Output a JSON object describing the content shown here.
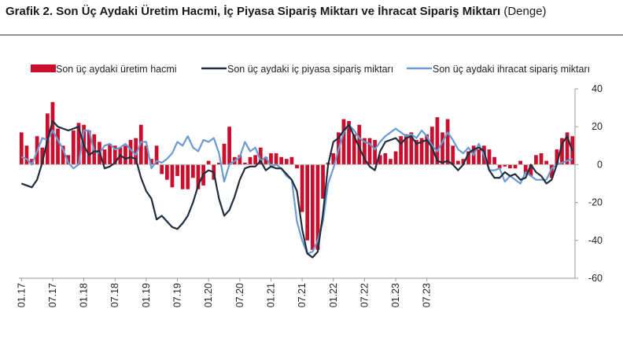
{
  "header": {
    "title": "Grafik 2. Son Üç Aydaki Üretim Hacmi, İç Piyasa Sipariş Miktarı ve İhracat Sipariş Miktarı",
    "title_suffix": "(Denge)"
  },
  "colors": {
    "bar": "#c8102e",
    "domestic": "#1f2d3d",
    "export": "#6a9bd1"
  },
  "chart_data": {
    "type": "bar",
    "series": [
      {
        "name": "Son üç aydaki üretim hacmi",
        "type": "bar",
        "values": [
          17,
          10,
          3,
          15,
          9,
          27,
          33,
          19,
          10,
          5,
          18,
          22,
          21,
          18,
          16,
          12,
          8,
          11,
          10,
          9,
          10,
          13,
          14,
          21,
          10,
          3,
          10,
          -5,
          -8,
          -12,
          -6,
          -13,
          -13,
          -7,
          -13,
          -11,
          2,
          -8,
          1,
          11,
          20,
          4,
          5,
          1,
          4,
          5,
          9,
          4,
          6,
          6,
          4,
          3,
          4,
          -2,
          -25,
          -40,
          -45,
          -45,
          -18,
          1,
          6,
          17,
          24,
          23,
          16,
          21,
          14,
          14,
          13,
          5,
          6,
          3,
          7,
          15,
          16,
          17,
          13,
          14,
          16,
          20,
          25,
          17,
          24,
          10,
          2,
          3,
          7,
          10,
          8,
          10,
          8,
          4,
          -2,
          -1,
          -2,
          -2,
          2,
          -5,
          -6,
          5,
          6,
          2,
          -7,
          8,
          14,
          17,
          15
        ]
      },
      {
        "name": "Son üç aydaki iç piyasa sipariş miktarı",
        "type": "line",
        "values": [
          -10,
          -11,
          -12,
          -8,
          1,
          13,
          23,
          20,
          19,
          18,
          19,
          20,
          10,
          5,
          7,
          7,
          -2,
          -1,
          1,
          5,
          3,
          4,
          3,
          -7,
          -14,
          -18,
          -29,
          -27,
          -30,
          -33,
          -34,
          -31,
          -27,
          -20,
          -11,
          -5,
          -3,
          -4,
          -18,
          -27,
          -24,
          -17,
          -8,
          -2,
          -1,
          -1,
          2,
          -3,
          -1,
          -2,
          -2,
          -5,
          -8,
          -14,
          -34,
          -47,
          -49,
          -46,
          -26,
          0,
          12,
          14,
          18,
          21,
          15,
          9,
          3,
          -1,
          -3,
          7,
          12,
          13,
          14,
          11,
          14,
          15,
          11,
          12,
          13,
          9,
          2,
          1,
          2,
          0,
          -3,
          0,
          6,
          8,
          9,
          7,
          -3,
          -7,
          -7,
          -4,
          -6,
          -5,
          -8,
          -7,
          0,
          -4,
          -6,
          -10,
          -8,
          0,
          11,
          15,
          7
        ]
      },
      {
        "name": "Son üç aydaki ihracat sipariş miktarı",
        "type": "line",
        "values": [
          4,
          3,
          0,
          7,
          14,
          13,
          18,
          13,
          8,
          1,
          -2,
          0,
          18,
          18,
          7,
          6,
          10,
          11,
          8,
          9,
          11,
          8,
          5,
          12,
          12,
          -2,
          2,
          1,
          3,
          6,
          12,
          10,
          15,
          9,
          7,
          13,
          12,
          14,
          6,
          -9,
          0,
          2,
          4,
          12,
          7,
          9,
          2,
          4,
          -1,
          0,
          -2,
          -6,
          -8,
          -30,
          -40,
          -47,
          -46,
          -40,
          -30,
          -10,
          -2,
          8,
          17,
          21,
          18,
          14,
          12,
          11,
          8,
          12,
          15,
          17,
          19,
          17,
          15,
          16,
          14,
          18,
          15,
          10,
          7,
          12,
          17,
          13,
          8,
          6,
          9,
          5,
          11,
          5,
          -3,
          -3,
          -2,
          -9,
          -6,
          -8,
          -10,
          -4,
          -6,
          -8,
          -8,
          -8,
          -2,
          0,
          1,
          2,
          3
        ]
      }
    ],
    "x_tick_labels": [
      "01.17",
      "07.17",
      "01.18",
      "07.18",
      "01.19",
      "07.19",
      "01.20",
      "07.20",
      "01.21",
      "07.21",
      "01.22",
      "07.22",
      "01.23",
      "07.23"
    ],
    "ylim": [
      -60,
      40
    ],
    "y_ticks": [
      "40",
      "20",
      "0",
      "-20",
      "-40",
      "-60"
    ],
    "y_axis_position": "right",
    "legend_position": "top",
    "grid": false
  }
}
